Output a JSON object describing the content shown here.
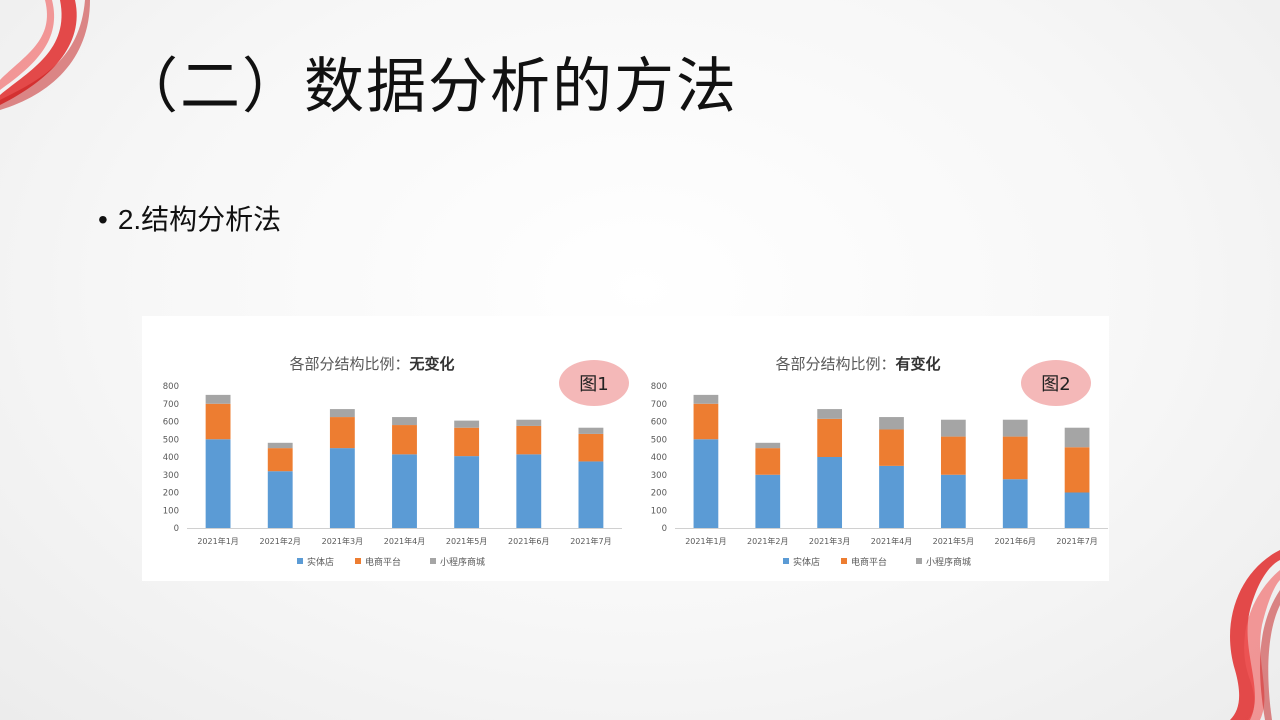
{
  "slide": {
    "title": "（二）数据分析的方法",
    "bullet": "2.结构分析法",
    "bullet_marker": "•"
  },
  "colors": {
    "实体店": "#5b9bd5",
    "电商平台": "#ed7d31",
    "小程序商城": "#a5a5a5",
    "badge": "#f4b8b8",
    "ribbon": "#e02b2b"
  },
  "chart_data": [
    {
      "type": "bar",
      "stacked": true,
      "title_prefix": "各部分结构比例：",
      "title_emphasis": "无变化",
      "badge": "图1",
      "categories": [
        "2021年1月",
        "2021年2月",
        "2021年3月",
        "2021年4月",
        "2021年5月",
        "2021年6月",
        "2021年7月"
      ],
      "series": [
        {
          "name": "实体店",
          "values": [
            500,
            320,
            450,
            415,
            405,
            415,
            375
          ]
        },
        {
          "name": "电商平台",
          "values": [
            200,
            130,
            175,
            165,
            160,
            160,
            155
          ]
        },
        {
          "name": "小程序商城",
          "values": [
            50,
            30,
            45,
            45,
            40,
            35,
            35
          ]
        }
      ],
      "ylim": [
        0,
        800
      ],
      "yticks": [
        0,
        100,
        200,
        300,
        400,
        500,
        600,
        700,
        800
      ],
      "legend": "bottom"
    },
    {
      "type": "bar",
      "stacked": true,
      "title_prefix": "各部分结构比例：",
      "title_emphasis": "有变化",
      "badge": "图2",
      "categories": [
        "2021年1月",
        "2021年2月",
        "2021年3月",
        "2021年4月",
        "2021年5月",
        "2021年6月",
        "2021年7月"
      ],
      "series": [
        {
          "name": "实体店",
          "values": [
            500,
            300,
            400,
            350,
            300,
            275,
            200
          ]
        },
        {
          "name": "电商平台",
          "values": [
            200,
            150,
            215,
            205,
            215,
            240,
            255
          ]
        },
        {
          "name": "小程序商城",
          "values": [
            50,
            30,
            55,
            70,
            95,
            95,
            110
          ]
        }
      ],
      "ylim": [
        0,
        800
      ],
      "yticks": [
        0,
        100,
        200,
        300,
        400,
        500,
        600,
        700,
        800
      ],
      "legend": "bottom"
    }
  ]
}
